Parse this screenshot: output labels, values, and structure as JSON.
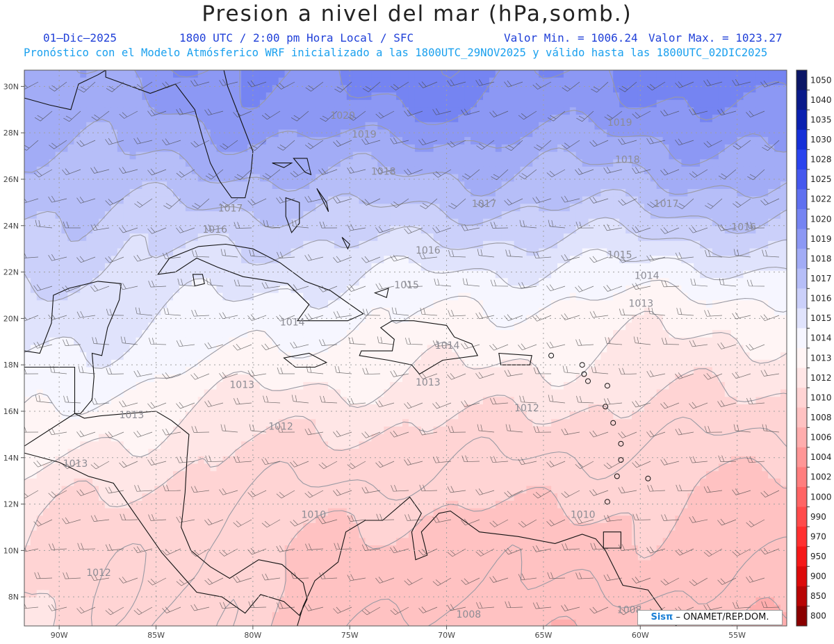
{
  "header": {
    "title": "Presion a nivel del mar (hPa,somb.)",
    "date": "01–Dic–2025",
    "time_info": "1800 UTC / 2:00 pm Hora Local / SFC",
    "valor_min": "Valor Min. = 1006.24",
    "valor_max": "Valor Max. = 1023.27",
    "forecast_info": "Pronóstico con el Modelo Atmósferico WRF inicializado a las 1800UTC_29NOV2025 y válido hasta las  1800UTC_02DIC2025"
  },
  "map": {
    "lon_labels": [
      "90W",
      "85W",
      "80W",
      "75W",
      "70W",
      "65W",
      "60W",
      "55W"
    ],
    "lat_labels": [
      "30N",
      "28N",
      "26N",
      "24N",
      "22N",
      "20N",
      "18N",
      "16N",
      "14N",
      "12N",
      "10N",
      "8N"
    ],
    "contour_labels": [
      {
        "text": "1020",
        "lon": -76.0,
        "lat": 28.6
      },
      {
        "text": "1019",
        "lon": -74.9,
        "lat": 27.8
      },
      {
        "text": "1019",
        "lon": -61.7,
        "lat": 28.3
      },
      {
        "text": "1018",
        "lon": -73.9,
        "lat": 26.2
      },
      {
        "text": "1018",
        "lon": -61.3,
        "lat": 26.7
      },
      {
        "text": "1017",
        "lon": -81.8,
        "lat": 24.6
      },
      {
        "text": "1017",
        "lon": -68.7,
        "lat": 24.8
      },
      {
        "text": "1017",
        "lon": -59.3,
        "lat": 24.8
      },
      {
        "text": "1016",
        "lon": -82.6,
        "lat": 23.7
      },
      {
        "text": "1016",
        "lon": -71.6,
        "lat": 22.8
      },
      {
        "text": "1016",
        "lon": -55.3,
        "lat": 23.8
      },
      {
        "text": "1015",
        "lon": -72.7,
        "lat": 21.3
      },
      {
        "text": "1015",
        "lon": -61.7,
        "lat": 22.6
      },
      {
        "text": "1014",
        "lon": -78.6,
        "lat": 19.7
      },
      {
        "text": "1014",
        "lon": -70.6,
        "lat": 18.7
      },
      {
        "text": "1014",
        "lon": -60.3,
        "lat": 21.7
      },
      {
        "text": "1013",
        "lon": -81.2,
        "lat": 17.0
      },
      {
        "text": "1013",
        "lon": -71.6,
        "lat": 17.1
      },
      {
        "text": "1013",
        "lon": -60.6,
        "lat": 20.5
      },
      {
        "text": "1013",
        "lon": -86.9,
        "lat": 15.7
      },
      {
        "text": "1013",
        "lon": -89.8,
        "lat": 13.6
      },
      {
        "text": "1012",
        "lon": -79.2,
        "lat": 15.2
      },
      {
        "text": "1012",
        "lon": -66.5,
        "lat": 16.0
      },
      {
        "text": "1012",
        "lon": -88.6,
        "lat": 8.9
      },
      {
        "text": "1010",
        "lon": -77.5,
        "lat": 11.4
      },
      {
        "text": "1010",
        "lon": -63.6,
        "lat": 11.4
      },
      {
        "text": "1008",
        "lon": -69.5,
        "lat": 7.1
      },
      {
        "text": "1008",
        "lon": -61.2,
        "lat": 7.3
      }
    ],
    "pressure_field": [
      {
        "lat": 30.7,
        "bands": [
          [
            -92,
            1018.8
          ],
          [
            -84,
            1019.6
          ],
          [
            -78,
            1020.2
          ],
          [
            -70,
            1020.6
          ],
          [
            -62,
            1020.0
          ],
          [
            -53.5,
            1020.8
          ]
        ]
      },
      {
        "lat": 29.0,
        "bands": [
          [
            -92,
            1018.4
          ],
          [
            -84,
            1019.0
          ],
          [
            -78,
            1019.8
          ],
          [
            -70,
            1020.0
          ],
          [
            -62,
            1019.5
          ],
          [
            -53.5,
            1020.0
          ]
        ]
      },
      {
        "lat": 27.0,
        "bands": [
          [
            -92,
            1017.6
          ],
          [
            -84,
            1018.3
          ],
          [
            -78,
            1018.6
          ],
          [
            -70,
            1018.4
          ],
          [
            -62,
            1018.3
          ],
          [
            -53.5,
            1019.0
          ]
        ]
      },
      {
        "lat": 25.0,
        "bands": [
          [
            -92,
            1017.0
          ],
          [
            -84,
            1017.1
          ],
          [
            -78,
            1017.2
          ],
          [
            -70,
            1017.3
          ],
          [
            -62,
            1017.1
          ],
          [
            -53.5,
            1017.6
          ]
        ]
      },
      {
        "lat": 23.5,
        "bands": [
          [
            -92,
            1016.6
          ],
          [
            -84,
            1016.3
          ],
          [
            -78,
            1016.1
          ],
          [
            -70,
            1016.2
          ],
          [
            -62,
            1015.9
          ],
          [
            -53.5,
            1016.4
          ]
        ]
      },
      {
        "lat": 22.0,
        "bands": [
          [
            -92,
            1016.2
          ],
          [
            -84,
            1015.8
          ],
          [
            -78,
            1015.3
          ],
          [
            -70,
            1015.0
          ],
          [
            -62,
            1014.7
          ],
          [
            -53.5,
            1014.8
          ]
        ]
      },
      {
        "lat": 20.5,
        "bands": [
          [
            -92,
            1015.6
          ],
          [
            -84,
            1015.2
          ],
          [
            -78,
            1014.5
          ],
          [
            -70,
            1014.1
          ],
          [
            -62,
            1013.7
          ],
          [
            -53.5,
            1013.6
          ]
        ]
      },
      {
        "lat": 19.0,
        "bands": [
          [
            -92,
            1015.2
          ],
          [
            -84,
            1014.6
          ],
          [
            -78,
            1014.0
          ],
          [
            -70,
            1013.6
          ],
          [
            -62,
            1013.1
          ],
          [
            -53.5,
            1012.9
          ]
        ]
      },
      {
        "lat": 17.5,
        "bands": [
          [
            -92,
            1014.9
          ],
          [
            -84,
            1013.8
          ],
          [
            -78,
            1013.2
          ],
          [
            -70,
            1013.0
          ],
          [
            -62,
            1012.5
          ],
          [
            -53.5,
            1012.2
          ]
        ]
      },
      {
        "lat": 16.0,
        "bands": [
          [
            -92,
            1014.5
          ],
          [
            -84,
            1013.0
          ],
          [
            -78,
            1012.4
          ],
          [
            -70,
            1012.2
          ],
          [
            -62,
            1011.8
          ],
          [
            -53.5,
            1011.6
          ]
        ]
      },
      {
        "lat": 14.5,
        "bands": [
          [
            -92,
            1013.8
          ],
          [
            -84,
            1012.3
          ],
          [
            -78,
            1011.8
          ],
          [
            -70,
            1011.5
          ],
          [
            -62,
            1011.1
          ],
          [
            -53.5,
            1010.7
          ]
        ]
      },
      {
        "lat": 13.0,
        "bands": [
          [
            -92,
            1013.0
          ],
          [
            -84,
            1011.8
          ],
          [
            -78,
            1011.2
          ],
          [
            -70,
            1010.8
          ],
          [
            -62,
            1010.4
          ],
          [
            -53.5,
            1009.8
          ]
        ]
      },
      {
        "lat": 11.5,
        "bands": [
          [
            -92,
            1012.3
          ],
          [
            -84,
            1011.4
          ],
          [
            -78,
            1010.4
          ],
          [
            -70,
            1009.8
          ],
          [
            -62,
            1009.9
          ],
          [
            -53.5,
            1009.6
          ]
        ]
      },
      {
        "lat": 10.0,
        "bands": [
          [
            -92,
            1012.0
          ],
          [
            -84,
            1011.0
          ],
          [
            -78,
            1010.0
          ],
          [
            -70,
            1009.4
          ],
          [
            -62,
            1009.6
          ],
          [
            -53.5,
            1009.2
          ]
        ]
      },
      {
        "lat": 8.5,
        "bands": [
          [
            -92,
            1012.0
          ],
          [
            -84,
            1010.9
          ],
          [
            -78,
            1010.2
          ],
          [
            -70,
            1009.0
          ],
          [
            -62,
            1009.2
          ],
          [
            -53.5,
            1008.8
          ]
        ]
      },
      {
        "lat": 6.7,
        "bands": [
          [
            -92,
            1011.8
          ],
          [
            -84,
            1011.0
          ],
          [
            -78,
            1009.8
          ],
          [
            -70,
            1008.4
          ],
          [
            -62,
            1008.4
          ],
          [
            -53.5,
            1008.0
          ]
        ]
      }
    ],
    "colorbar": [
      {
        "label": "1050",
        "color": "#0b1666"
      },
      {
        "label": "1040",
        "color": "#0a1a8a"
      },
      {
        "label": "1035",
        "color": "#0a20b0"
      },
      {
        "label": "1030",
        "color": "#1530d8"
      },
      {
        "label": "1028",
        "color": "#2a44ee"
      },
      {
        "label": "1025",
        "color": "#4558ee"
      },
      {
        "label": "1022",
        "color": "#5f70f0"
      },
      {
        "label": "1020",
        "color": "#7584f2"
      },
      {
        "label": "1019",
        "color": "#8c98f4"
      },
      {
        "label": "1018",
        "color": "#a2acf6"
      },
      {
        "label": "1017",
        "color": "#b6bef8"
      },
      {
        "label": "1016",
        "color": "#cbd0fa"
      },
      {
        "label": "1015",
        "color": "#e0e3fc"
      },
      {
        "label": "1014",
        "color": "#f6f6ff"
      },
      {
        "label": "1013",
        "color": "#fff5f5"
      },
      {
        "label": "1012",
        "color": "#ffe6e6"
      },
      {
        "label": "1010",
        "color": "#ffd4d4"
      },
      {
        "label": "1008",
        "color": "#ffc2c2"
      },
      {
        "label": "1006",
        "color": "#ffadad"
      },
      {
        "label": "1004",
        "color": "#ff9696"
      },
      {
        "label": "1002",
        "color": "#ff7e7e"
      },
      {
        "label": "1000",
        "color": "#ff6464"
      },
      {
        "label": "990",
        "color": "#ff4b4b"
      },
      {
        "label": "970",
        "color": "#ff3030"
      },
      {
        "label": "950",
        "color": "#f51818"
      },
      {
        "label": "900",
        "color": "#dc0a0a"
      },
      {
        "label": "850",
        "color": "#b80505"
      },
      {
        "label": "800",
        "color": "#8a0000"
      }
    ],
    "colors": {
      "coast": "#111111",
      "contour": "#9a9aa4",
      "wind": "#444444",
      "grid": "#a0a0a0"
    }
  },
  "credit": {
    "sis": "Sisπ",
    "rest": "– ONAMET/REP.DOM."
  }
}
